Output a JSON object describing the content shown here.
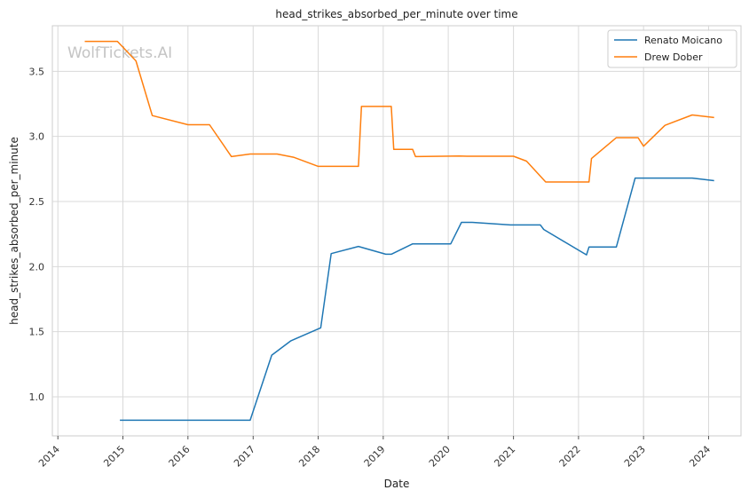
{
  "chart_data": {
    "type": "line",
    "title": "head_strikes_absorbed_per_minute over time",
    "xlabel": "Date",
    "ylabel": "head_strikes_absorbed_per_minute",
    "watermark": "WolfTickets.AI",
    "x_ticks": [
      "2014",
      "2015",
      "2016",
      "2017",
      "2018",
      "2019",
      "2020",
      "2021",
      "2022",
      "2023",
      "2024"
    ],
    "y_ticks": [
      "1.0",
      "1.5",
      "2.0",
      "2.5",
      "3.0",
      "3.5"
    ],
    "xlim": [
      "2013-12-01",
      "2024-07-01"
    ],
    "ylim": [
      0.7,
      3.85
    ],
    "grid": true,
    "legend": "top-right",
    "series": [
      {
        "name": "Renato Moicano",
        "color": "#1f77b4",
        "points": [
          [
            "2014-12-15",
            0.82
          ],
          [
            "2016-12-15",
            0.82
          ],
          [
            "2017-04-15",
            1.32
          ],
          [
            "2017-08-01",
            1.43
          ],
          [
            "2018-01-15",
            1.53
          ],
          [
            "2018-03-15",
            2.1
          ],
          [
            "2018-08-15",
            2.155
          ],
          [
            "2019-01-15",
            2.095
          ],
          [
            "2019-02-15",
            2.095
          ],
          [
            "2019-06-15",
            2.175
          ],
          [
            "2020-01-15",
            2.175
          ],
          [
            "2020-03-15",
            2.34
          ],
          [
            "2020-05-15",
            2.34
          ],
          [
            "2020-12-15",
            2.32
          ],
          [
            "2021-06-01",
            2.32
          ],
          [
            "2021-06-20",
            2.285
          ],
          [
            "2022-02-15",
            2.09
          ],
          [
            "2022-03-01",
            2.15
          ],
          [
            "2022-08-01",
            2.15
          ],
          [
            "2022-11-15",
            2.68
          ],
          [
            "2023-10-01",
            2.68
          ],
          [
            "2024-02-01",
            2.66
          ]
        ]
      },
      {
        "name": "Drew Dober",
        "color": "#ff7f0e",
        "points": [
          [
            "2014-06-01",
            3.73
          ],
          [
            "2014-12-01",
            3.73
          ],
          [
            "2015-03-15",
            3.58
          ],
          [
            "2015-06-15",
            3.16
          ],
          [
            "2016-01-01",
            3.09
          ],
          [
            "2016-05-01",
            3.09
          ],
          [
            "2016-09-01",
            2.845
          ],
          [
            "2016-12-15",
            2.865
          ],
          [
            "2017-05-15",
            2.865
          ],
          [
            "2017-08-15",
            2.84
          ],
          [
            "2018-01-01",
            2.77
          ],
          [
            "2018-08-15",
            2.77
          ],
          [
            "2018-09-01",
            3.23
          ],
          [
            "2019-02-15",
            3.23
          ],
          [
            "2019-03-01",
            2.9
          ],
          [
            "2019-06-15",
            2.9
          ],
          [
            "2019-07-01",
            2.845
          ],
          [
            "2020-03-01",
            2.85
          ],
          [
            "2020-04-15",
            2.848
          ],
          [
            "2021-01-01",
            2.848
          ],
          [
            "2021-03-15",
            2.81
          ],
          [
            "2021-07-01",
            2.65
          ],
          [
            "2022-03-01",
            2.65
          ],
          [
            "2022-03-15",
            2.83
          ],
          [
            "2022-08-01",
            2.99
          ],
          [
            "2022-12-01",
            2.99
          ],
          [
            "2023-01-01",
            2.925
          ],
          [
            "2023-05-01",
            3.085
          ],
          [
            "2023-10-01",
            3.165
          ],
          [
            "2024-02-01",
            3.145
          ]
        ]
      }
    ]
  }
}
